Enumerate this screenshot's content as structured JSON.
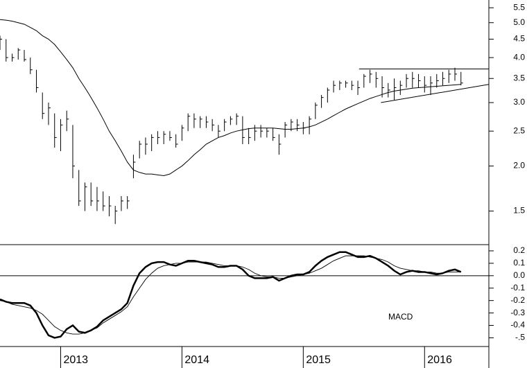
{
  "chart_data": [
    {
      "type": "ohlc",
      "log_scale": true,
      "color": "#000000",
      "xlim": [
        2012.5,
        2016.53
      ],
      "ylim": [
        1.21,
        5.78
      ],
      "yticks": [
        1.5,
        {
          "value": 2,
          "label": "2.0"
        },
        2.5,
        {
          "value": 3,
          "label": "3.0"
        },
        3.5,
        {
          "value": 4,
          "label": "4.0"
        },
        4.5,
        {
          "value": 5,
          "label": "5.0"
        },
        5.5
      ],
      "x": [
        2012.5,
        2012.55,
        2012.6,
        2012.65,
        2012.7,
        2012.75,
        2012.8,
        2012.85,
        2012.9,
        2012.95,
        2013,
        2013.05,
        2013.1,
        2013.15,
        2013.2,
        2013.25,
        2013.3,
        2013.35,
        2013.4,
        2013.45,
        2013.5,
        2013.55,
        2013.6,
        2013.65,
        2013.7,
        2013.75,
        2013.8,
        2013.85,
        2013.9,
        2013.95,
        2014,
        2014.05,
        2014.1,
        2014.15,
        2014.2,
        2014.25,
        2014.3,
        2014.35,
        2014.4,
        2014.45,
        2014.5,
        2014.55,
        2014.6,
        2014.65,
        2014.7,
        2014.75,
        2014.8,
        2014.85,
        2014.9,
        2014.95,
        2015,
        2015.05,
        2015.1,
        2015.15,
        2015.2,
        2015.25,
        2015.3,
        2015.35,
        2015.4,
        2015.45,
        2015.5,
        2015.55,
        2015.6,
        2015.65,
        2015.7,
        2015.75,
        2015.8,
        2015.85,
        2015.9,
        2015.95,
        2016,
        2016.05,
        2016.1,
        2016.15,
        2016.2,
        2016.25,
        2016.3
      ],
      "high": [
        4.6,
        4.5,
        4.1,
        4.25,
        4.2,
        4.0,
        3.7,
        3.2,
        3.0,
        2.8,
        2.7,
        2.85,
        2.6,
        1.95,
        1.8,
        1.8,
        1.75,
        1.7,
        1.65,
        1.55,
        1.65,
        1.65,
        2.15,
        2.35,
        2.4,
        2.45,
        2.5,
        2.5,
        2.5,
        2.45,
        2.6,
        2.8,
        2.8,
        2.75,
        2.75,
        2.7,
        2.6,
        2.7,
        2.75,
        2.8,
        2.75,
        2.55,
        2.6,
        2.6,
        2.55,
        2.55,
        2.45,
        2.65,
        2.7,
        2.7,
        2.65,
        2.75,
        3.0,
        3.15,
        3.3,
        3.45,
        3.45,
        3.45,
        3.45,
        3.45,
        3.6,
        3.7,
        3.65,
        3.55,
        3.4,
        3.5,
        3.45,
        3.6,
        3.65,
        3.6,
        3.55,
        3.55,
        3.6,
        3.65,
        3.7,
        3.75,
        3.65
      ],
      "low": [
        4.2,
        3.9,
        3.9,
        3.95,
        3.9,
        3.6,
        3.2,
        2.7,
        2.6,
        2.25,
        2.2,
        2.5,
        1.85,
        1.55,
        1.5,
        1.55,
        1.5,
        1.5,
        1.45,
        1.38,
        1.5,
        1.52,
        1.85,
        2.1,
        2.15,
        2.2,
        2.3,
        2.3,
        2.35,
        2.25,
        2.35,
        2.5,
        2.55,
        2.55,
        2.55,
        2.5,
        2.4,
        2.5,
        2.6,
        2.6,
        2.3,
        2.3,
        2.35,
        2.4,
        2.4,
        2.35,
        2.15,
        2.4,
        2.5,
        2.5,
        2.45,
        2.45,
        2.7,
        2.9,
        3.0,
        3.2,
        3.25,
        3.3,
        3.25,
        3.15,
        3.3,
        3.4,
        3.3,
        3.1,
        3.1,
        3.05,
        3.15,
        3.3,
        3.3,
        3.3,
        3.2,
        3.15,
        3.3,
        3.35,
        3.4,
        3.45,
        3.35
      ],
      "close": [
        4.5,
        4.0,
        4.0,
        4.2,
        3.95,
        3.7,
        3.3,
        2.8,
        2.9,
        2.4,
        2.6,
        2.7,
        2.0,
        1.6,
        1.75,
        1.6,
        1.6,
        1.55,
        1.55,
        1.5,
        1.6,
        1.6,
        2.05,
        2.3,
        2.3,
        2.4,
        2.4,
        2.45,
        2.4,
        2.3,
        2.55,
        2.75,
        2.7,
        2.7,
        2.65,
        2.6,
        2.5,
        2.65,
        2.7,
        2.75,
        2.4,
        2.4,
        2.5,
        2.5,
        2.5,
        2.4,
        2.3,
        2.6,
        2.65,
        2.6,
        2.55,
        2.7,
        2.95,
        3.1,
        3.25,
        3.35,
        3.4,
        3.4,
        3.35,
        3.3,
        3.55,
        3.6,
        3.5,
        3.3,
        3.25,
        3.3,
        3.35,
        3.5,
        3.5,
        3.45,
        3.35,
        3.4,
        3.45,
        3.5,
        3.6,
        3.6,
        3.4
      ],
      "series": [
        {
          "color": "#000000",
          "values": [
            5.1,
            5.08,
            5.05,
            5.0,
            4.95,
            4.85,
            4.75,
            4.6,
            4.5,
            4.35,
            4.15,
            3.95,
            3.75,
            3.5,
            3.3,
            3.1,
            2.9,
            2.7,
            2.5,
            2.35,
            2.2,
            2.05,
            1.95,
            1.92,
            1.9,
            1.9,
            1.89,
            1.88,
            1.9,
            1.95,
            2.0,
            2.07,
            2.15,
            2.22,
            2.3,
            2.35,
            2.4,
            2.43,
            2.47,
            2.5,
            2.52,
            2.54,
            2.55,
            2.55,
            2.55,
            2.55,
            2.54,
            2.53,
            2.53,
            2.54,
            2.55,
            2.57,
            2.6,
            2.65,
            2.7,
            2.76,
            2.82,
            2.88,
            2.93,
            2.98,
            3.03,
            3.08,
            3.12,
            3.16,
            3.2,
            3.23,
            3.25,
            3.27,
            3.29,
            3.3,
            3.31,
            3.32,
            3.33,
            3.34,
            3.35,
            3.36,
            3.37
          ]
        }
      ],
      "trendlines": [
        {
          "x": [
            2015.46,
            2016.53
          ],
          "y": [
            3.72,
            3.72
          ]
        },
        {
          "x": [
            2015.64,
            2016.53
          ],
          "y": [
            3.0,
            3.37
          ]
        }
      ]
    },
    {
      "type": "line",
      "label": "MACD",
      "color": "#000000",
      "xlim": [
        2012.5,
        2016.53
      ],
      "ylim": [
        -0.57,
        0.25
      ],
      "xticks": [
        2013,
        2014,
        2015,
        2016
      ],
      "yticks": [
        0.2,
        0.1,
        {
          "value": 0,
          "label": "0.0"
        },
        -0.1,
        -0.2,
        -0.3,
        -0.4,
        {
          "value": -0.5,
          "label": "-.5"
        }
      ],
      "zero_line": true,
      "x": [
        2012.5,
        2012.55,
        2012.6,
        2012.65,
        2012.7,
        2012.75,
        2012.8,
        2012.85,
        2012.9,
        2012.95,
        2013,
        2013.05,
        2013.1,
        2013.15,
        2013.2,
        2013.25,
        2013.3,
        2013.35,
        2013.4,
        2013.45,
        2013.5,
        2013.55,
        2013.6,
        2013.65,
        2013.7,
        2013.75,
        2013.8,
        2013.85,
        2013.9,
        2013.95,
        2014,
        2014.05,
        2014.1,
        2014.15,
        2014.2,
        2014.25,
        2014.3,
        2014.35,
        2014.4,
        2014.45,
        2014.5,
        2014.55,
        2014.6,
        2014.65,
        2014.7,
        2014.75,
        2014.8,
        2014.85,
        2014.9,
        2014.95,
        2015,
        2015.05,
        2015.1,
        2015.15,
        2015.2,
        2015.25,
        2015.3,
        2015.35,
        2015.4,
        2015.45,
        2015.5,
        2015.55,
        2015.6,
        2015.65,
        2015.7,
        2015.75,
        2015.8,
        2015.85,
        2015.9,
        2015.95,
        2016,
        2016.05,
        2016.1,
        2016.15,
        2016.2,
        2016.25,
        2016.3
      ],
      "series": [
        {
          "color": "#000000",
          "width": 2.5,
          "values": [
            -0.19,
            -0.21,
            -0.22,
            -0.22,
            -0.22,
            -0.24,
            -0.3,
            -0.4,
            -0.48,
            -0.5,
            -0.49,
            -0.43,
            -0.4,
            -0.45,
            -0.46,
            -0.44,
            -0.41,
            -0.36,
            -0.33,
            -0.3,
            -0.27,
            -0.22,
            -0.08,
            0.02,
            0.07,
            0.1,
            0.11,
            0.11,
            0.09,
            0.08,
            0.1,
            0.12,
            0.12,
            0.11,
            0.1,
            0.09,
            0.07,
            0.07,
            0.08,
            0.08,
            0.05,
            0.0,
            -0.02,
            -0.02,
            -0.02,
            -0.01,
            -0.04,
            -0.02,
            0.0,
            0.01,
            0.01,
            0.03,
            0.08,
            0.12,
            0.15,
            0.17,
            0.19,
            0.19,
            0.17,
            0.15,
            0.15,
            0.16,
            0.14,
            0.11,
            0.08,
            0.04,
            0.01,
            0.03,
            0.04,
            0.03,
            0.03,
            0.02,
            0.01,
            0.02,
            0.04,
            0.05,
            0.03
          ]
        },
        {
          "color": "#000000",
          "width": 0.9,
          "values": [
            -0.2,
            -0.21,
            -0.23,
            -0.24,
            -0.25,
            -0.26,
            -0.28,
            -0.31,
            -0.36,
            -0.41,
            -0.44,
            -0.46,
            -0.47,
            -0.47,
            -0.46,
            -0.44,
            -0.42,
            -0.38,
            -0.35,
            -0.32,
            -0.29,
            -0.25,
            -0.17,
            -0.1,
            -0.03,
            0.02,
            0.06,
            0.08,
            0.09,
            0.1,
            0.1,
            0.11,
            0.11,
            0.11,
            0.11,
            0.1,
            0.09,
            0.08,
            0.08,
            0.08,
            0.07,
            0.05,
            0.02,
            0.0,
            -0.01,
            -0.01,
            -0.02,
            -0.02,
            -0.01,
            0.0,
            0.01,
            0.02,
            0.04,
            0.06,
            0.09,
            0.12,
            0.14,
            0.16,
            0.16,
            0.16,
            0.16,
            0.15,
            0.14,
            0.13,
            0.11,
            0.08,
            0.06,
            0.05,
            0.04,
            0.04,
            0.03,
            0.03,
            0.02,
            0.02,
            0.03,
            0.03,
            0.03
          ]
        }
      ]
    }
  ]
}
